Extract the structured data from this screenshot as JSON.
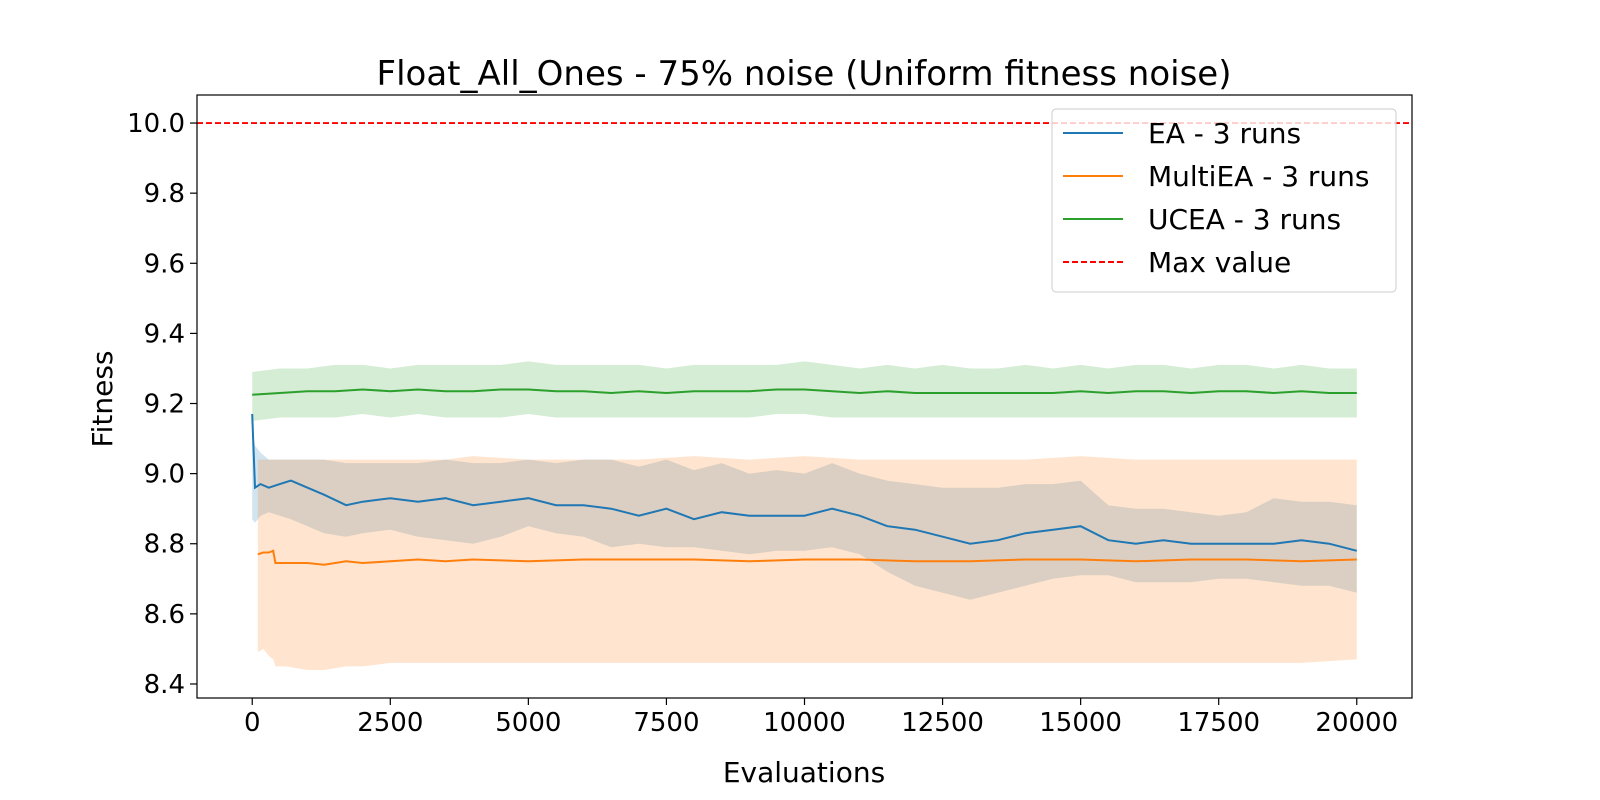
{
  "chart_data": {
    "type": "line",
    "title": "Float_All_Ones - 75% noise (Uniform fitness noise)",
    "xlabel": "Evaluations",
    "ylabel": "Fitness",
    "xlim": [
      -1000,
      21000
    ],
    "ylim": [
      8.36,
      10.08
    ],
    "xticks": [
      0,
      2500,
      5000,
      7500,
      10000,
      12500,
      15000,
      17500,
      20000
    ],
    "yticks": [
      8.4,
      8.6,
      8.8,
      9.0,
      9.2,
      9.4,
      9.6,
      9.8,
      10.0
    ],
    "grid": false,
    "legend_position": "top-right",
    "reference_line": {
      "name": "Max value",
      "y": 10.0,
      "color": "#ff0000",
      "style": "dashed"
    },
    "series": [
      {
        "name": "EA - 3 runs",
        "color": "#1f77b4",
        "x": [
          0,
          50,
          150,
          300,
          500,
          700,
          1000,
          1300,
          1700,
          2000,
          2500,
          3000,
          3500,
          4000,
          4500,
          5000,
          5500,
          6000,
          6500,
          7000,
          7500,
          8000,
          8500,
          9000,
          9500,
          10000,
          10500,
          11000,
          11500,
          12000,
          12500,
          13000,
          13500,
          14000,
          14500,
          15000,
          15500,
          16000,
          16500,
          17000,
          17500,
          18000,
          18500,
          19000,
          19500,
          20000
        ],
        "y": [
          9.17,
          8.96,
          8.97,
          8.96,
          8.97,
          8.98,
          8.96,
          8.94,
          8.91,
          8.92,
          8.93,
          8.92,
          8.93,
          8.91,
          8.92,
          8.93,
          8.91,
          8.91,
          8.9,
          8.88,
          8.9,
          8.87,
          8.89,
          8.88,
          8.88,
          8.88,
          8.9,
          8.88,
          8.85,
          8.84,
          8.82,
          8.8,
          8.81,
          8.83,
          8.84,
          8.85,
          8.81,
          8.8,
          8.81,
          8.8,
          8.8,
          8.8,
          8.8,
          8.81,
          8.8,
          8.78
        ],
        "lower": [
          8.87,
          8.86,
          8.88,
          8.89,
          8.88,
          8.87,
          8.85,
          8.83,
          8.82,
          8.83,
          8.84,
          8.82,
          8.81,
          8.8,
          8.82,
          8.85,
          8.83,
          8.82,
          8.79,
          8.8,
          8.79,
          8.79,
          8.78,
          8.77,
          8.78,
          8.78,
          8.79,
          8.77,
          8.72,
          8.68,
          8.66,
          8.64,
          8.66,
          8.68,
          8.7,
          8.71,
          8.71,
          8.69,
          8.69,
          8.69,
          8.7,
          8.7,
          8.69,
          8.68,
          8.68,
          8.66
        ],
        "upper": [
          9.12,
          9.08,
          9.06,
          9.04,
          9.04,
          9.04,
          9.04,
          9.04,
          9.03,
          9.03,
          9.03,
          9.03,
          9.04,
          9.03,
          9.03,
          9.04,
          9.03,
          9.04,
          9.04,
          9.02,
          9.04,
          9.01,
          9.03,
          9.0,
          9.01,
          9.0,
          9.03,
          9.0,
          8.98,
          8.97,
          8.96,
          8.96,
          8.96,
          8.97,
          8.97,
          8.98,
          8.91,
          8.9,
          8.9,
          8.89,
          8.88,
          8.89,
          8.93,
          8.92,
          8.92,
          8.91
        ]
      },
      {
        "name": "MultiEA - 3 runs",
        "color": "#ff7f0e",
        "x": [
          100,
          200,
          300,
          380,
          420,
          600,
          1000,
          1300,
          1700,
          2000,
          2500,
          3000,
          3500,
          4000,
          5000,
          6000,
          7000,
          8000,
          9000,
          10000,
          11000,
          12000,
          13000,
          14000,
          15000,
          16000,
          17000,
          18000,
          19000,
          20000
        ],
        "y": [
          8.77,
          8.775,
          8.775,
          8.78,
          8.745,
          8.745,
          8.745,
          8.74,
          8.75,
          8.745,
          8.75,
          8.755,
          8.75,
          8.755,
          8.75,
          8.755,
          8.755,
          8.755,
          8.75,
          8.755,
          8.755,
          8.75,
          8.75,
          8.755,
          8.755,
          8.75,
          8.755,
          8.755,
          8.75,
          8.755
        ],
        "lower": [
          8.49,
          8.5,
          8.48,
          8.47,
          8.45,
          8.45,
          8.44,
          8.44,
          8.45,
          8.45,
          8.46,
          8.46,
          8.46,
          8.46,
          8.46,
          8.46,
          8.46,
          8.46,
          8.46,
          8.46,
          8.46,
          8.46,
          8.46,
          8.46,
          8.46,
          8.46,
          8.46,
          8.46,
          8.46,
          8.47
        ],
        "upper": [
          9.04,
          9.04,
          9.04,
          9.04,
          9.04,
          9.04,
          9.04,
          9.04,
          9.04,
          9.04,
          9.04,
          9.04,
          9.04,
          9.05,
          9.04,
          9.04,
          9.04,
          9.05,
          9.04,
          9.05,
          9.04,
          9.04,
          9.04,
          9.04,
          9.05,
          9.04,
          9.04,
          9.04,
          9.04,
          9.04
        ]
      },
      {
        "name": "UCEA - 3 runs",
        "color": "#2ca02c",
        "x": [
          0,
          500,
          1000,
          1500,
          2000,
          2500,
          3000,
          3500,
          4000,
          4500,
          5000,
          5500,
          6000,
          6500,
          7000,
          7500,
          8000,
          8500,
          9000,
          9500,
          10000,
          10500,
          11000,
          11500,
          12000,
          12500,
          13000,
          13500,
          14000,
          14500,
          15000,
          15500,
          16000,
          16500,
          17000,
          17500,
          18000,
          18500,
          19000,
          19500,
          20000
        ],
        "y": [
          9.225,
          9.23,
          9.235,
          9.235,
          9.24,
          9.235,
          9.24,
          9.235,
          9.235,
          9.24,
          9.24,
          9.235,
          9.235,
          9.23,
          9.235,
          9.23,
          9.235,
          9.235,
          9.235,
          9.24,
          9.24,
          9.235,
          9.23,
          9.235,
          9.23,
          9.23,
          9.23,
          9.23,
          9.23,
          9.23,
          9.235,
          9.23,
          9.235,
          9.235,
          9.23,
          9.235,
          9.235,
          9.23,
          9.235,
          9.23,
          9.23
        ],
        "lower": [
          9.15,
          9.16,
          9.16,
          9.16,
          9.17,
          9.16,
          9.17,
          9.16,
          9.16,
          9.16,
          9.17,
          9.16,
          9.16,
          9.16,
          9.16,
          9.16,
          9.16,
          9.16,
          9.16,
          9.17,
          9.17,
          9.16,
          9.16,
          9.16,
          9.16,
          9.16,
          9.16,
          9.16,
          9.16,
          9.16,
          9.16,
          9.16,
          9.16,
          9.16,
          9.16,
          9.16,
          9.16,
          9.16,
          9.16,
          9.16,
          9.16
        ],
        "upper": [
          9.29,
          9.3,
          9.3,
          9.31,
          9.31,
          9.3,
          9.31,
          9.31,
          9.31,
          9.31,
          9.32,
          9.31,
          9.31,
          9.31,
          9.31,
          9.3,
          9.31,
          9.31,
          9.31,
          9.31,
          9.32,
          9.31,
          9.3,
          9.31,
          9.3,
          9.31,
          9.3,
          9.3,
          9.31,
          9.3,
          9.31,
          9.3,
          9.31,
          9.31,
          9.3,
          9.31,
          9.31,
          9.3,
          9.31,
          9.3,
          9.3
        ]
      }
    ]
  }
}
